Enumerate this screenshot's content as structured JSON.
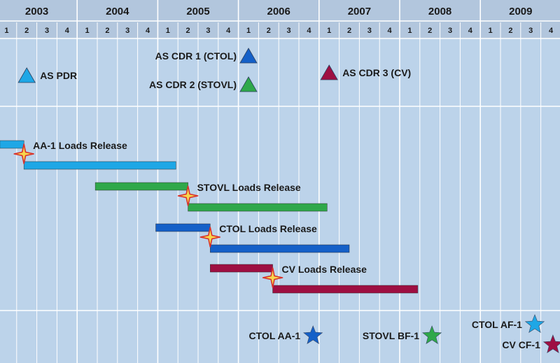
{
  "years": [
    {
      "label": "2003"
    },
    {
      "label": "2004"
    },
    {
      "label": "2005"
    },
    {
      "label": "2006"
    },
    {
      "label": "2007"
    },
    {
      "label": "2008"
    },
    {
      "label": "2009"
    }
  ],
  "quarter_labels": [
    "1",
    "2",
    "3",
    "4",
    "1",
    "2",
    "3",
    "4",
    "1",
    "2",
    "3",
    "4",
    "1",
    "2",
    "3",
    "4",
    "1",
    "2",
    "3",
    "4",
    "1",
    "2",
    "3",
    "4",
    "1",
    "2",
    "3",
    "4"
  ],
  "colors": {
    "header_bg": "#b2c6dd",
    "body_bg": "#bcd3ea",
    "grid": "#ffffff",
    "light_blue": "#1ea7e6",
    "green": "#2fa84a",
    "dark_blue": "#1560c8",
    "maroon": "#9e0f42",
    "burst_fill": "#f7d64d",
    "burst_stroke": "#d8302a"
  },
  "milestones": [
    {
      "label": "AS PDR",
      "shape": "triangle",
      "color": "#1ea7e6",
      "icon": "triangle-icon"
    },
    {
      "label": "AS CDR 1 (CTOL)",
      "shape": "triangle",
      "color": "#1560c8",
      "icon": "triangle-icon"
    },
    {
      "label": "AS CDR 2 (STOVL)",
      "shape": "triangle",
      "color": "#2fa84a",
      "icon": "triangle-icon"
    },
    {
      "label": "AS CDR 3 (CV)",
      "shape": "triangle",
      "color": "#9e0f42",
      "icon": "triangle-icon"
    }
  ],
  "releases": [
    {
      "label": "AA-1 Loads Release",
      "color": "#1ea7e6",
      "icon": "burst-star-icon"
    },
    {
      "label": "STOVL Loads Release",
      "color": "#2fa84a",
      "icon": "burst-star-icon"
    },
    {
      "label": "CTOL Loads Release",
      "color": "#1560c8",
      "icon": "burst-star-icon"
    },
    {
      "label": "CV Loads Release",
      "color": "#9e0f42",
      "icon": "burst-star-icon"
    }
  ],
  "flights": [
    {
      "label": "CTOL AA-1",
      "color": "#1560c8",
      "icon": "star-icon"
    },
    {
      "label": "STOVL BF-1",
      "color": "#2fa84a",
      "icon": "star-icon"
    },
    {
      "label": "CTOL AF-1",
      "color": "#1ea7e6",
      "icon": "star-icon"
    },
    {
      "label": "CV CF-1",
      "color": "#9e0f42",
      "icon": "star-icon"
    }
  ]
}
